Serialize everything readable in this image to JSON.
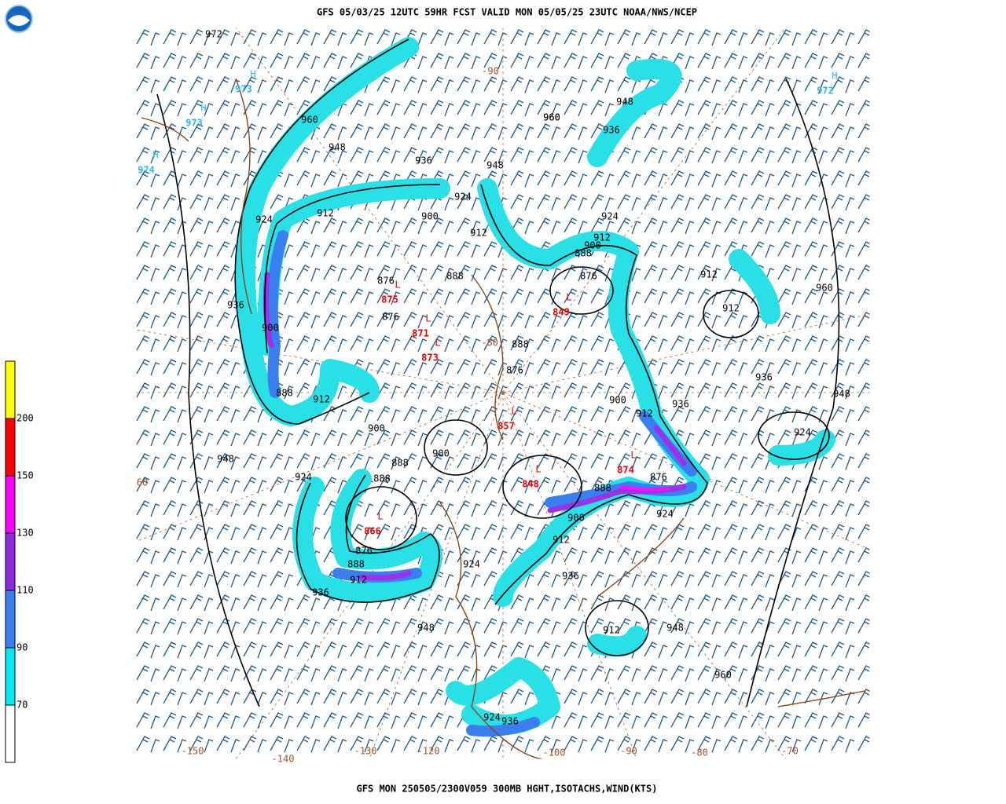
{
  "header": {
    "title": "GFS 05/03/25 12UTC 59HR FCST VALID MON 05/05/25 23UTC NOAA/NWS/NCEP"
  },
  "footer": "GFS MON 250505/2300V059 300MB HGHT,ISOTACHS,WIND(KTS)",
  "colorbar": {
    "levels": [
      200,
      150,
      130,
      110,
      90,
      70
    ]
  },
  "map": {
    "heights": [
      972,
      960,
      948,
      936,
      924,
      912,
      900,
      888,
      876,
      876,
      900,
      936,
      888,
      912,
      900,
      900,
      888,
      924,
      888,
      876,
      888,
      912,
      936,
      948,
      948,
      924,
      936,
      912,
      900,
      888,
      876,
      924,
      912,
      900,
      936,
      936,
      948,
      924,
      912,
      960,
      912,
      924,
      912,
      900,
      888,
      876,
      948,
      936,
      960,
      948,
      924,
      912,
      912,
      948,
      960,
      936,
      924,
      888,
      876,
      960
    ],
    "lows": [
      {
        "letter": "L",
        "value": 875
      },
      {
        "letter": "L",
        "value": 871
      },
      {
        "letter": "L",
        "value": 873
      },
      {
        "letter": "L",
        "value": 857
      },
      {
        "letter": "L",
        "value": 849
      },
      {
        "letter": "L",
        "value": 848
      },
      {
        "letter": "L",
        "value": 874
      },
      {
        "letter": "L",
        "value": 866
      }
    ],
    "highs": [
      {
        "letter": "H",
        "value": 973
      },
      {
        "letter": "H",
        "value": 972
      },
      {
        "letter": "H",
        "value": 973
      },
      {
        "letter": "H",
        "value": 974
      }
    ],
    "longitudes": [
      -150,
      -140,
      -130,
      -120,
      -100,
      -90,
      -80,
      -70,
      60,
      -80,
      -90
    ]
  }
}
